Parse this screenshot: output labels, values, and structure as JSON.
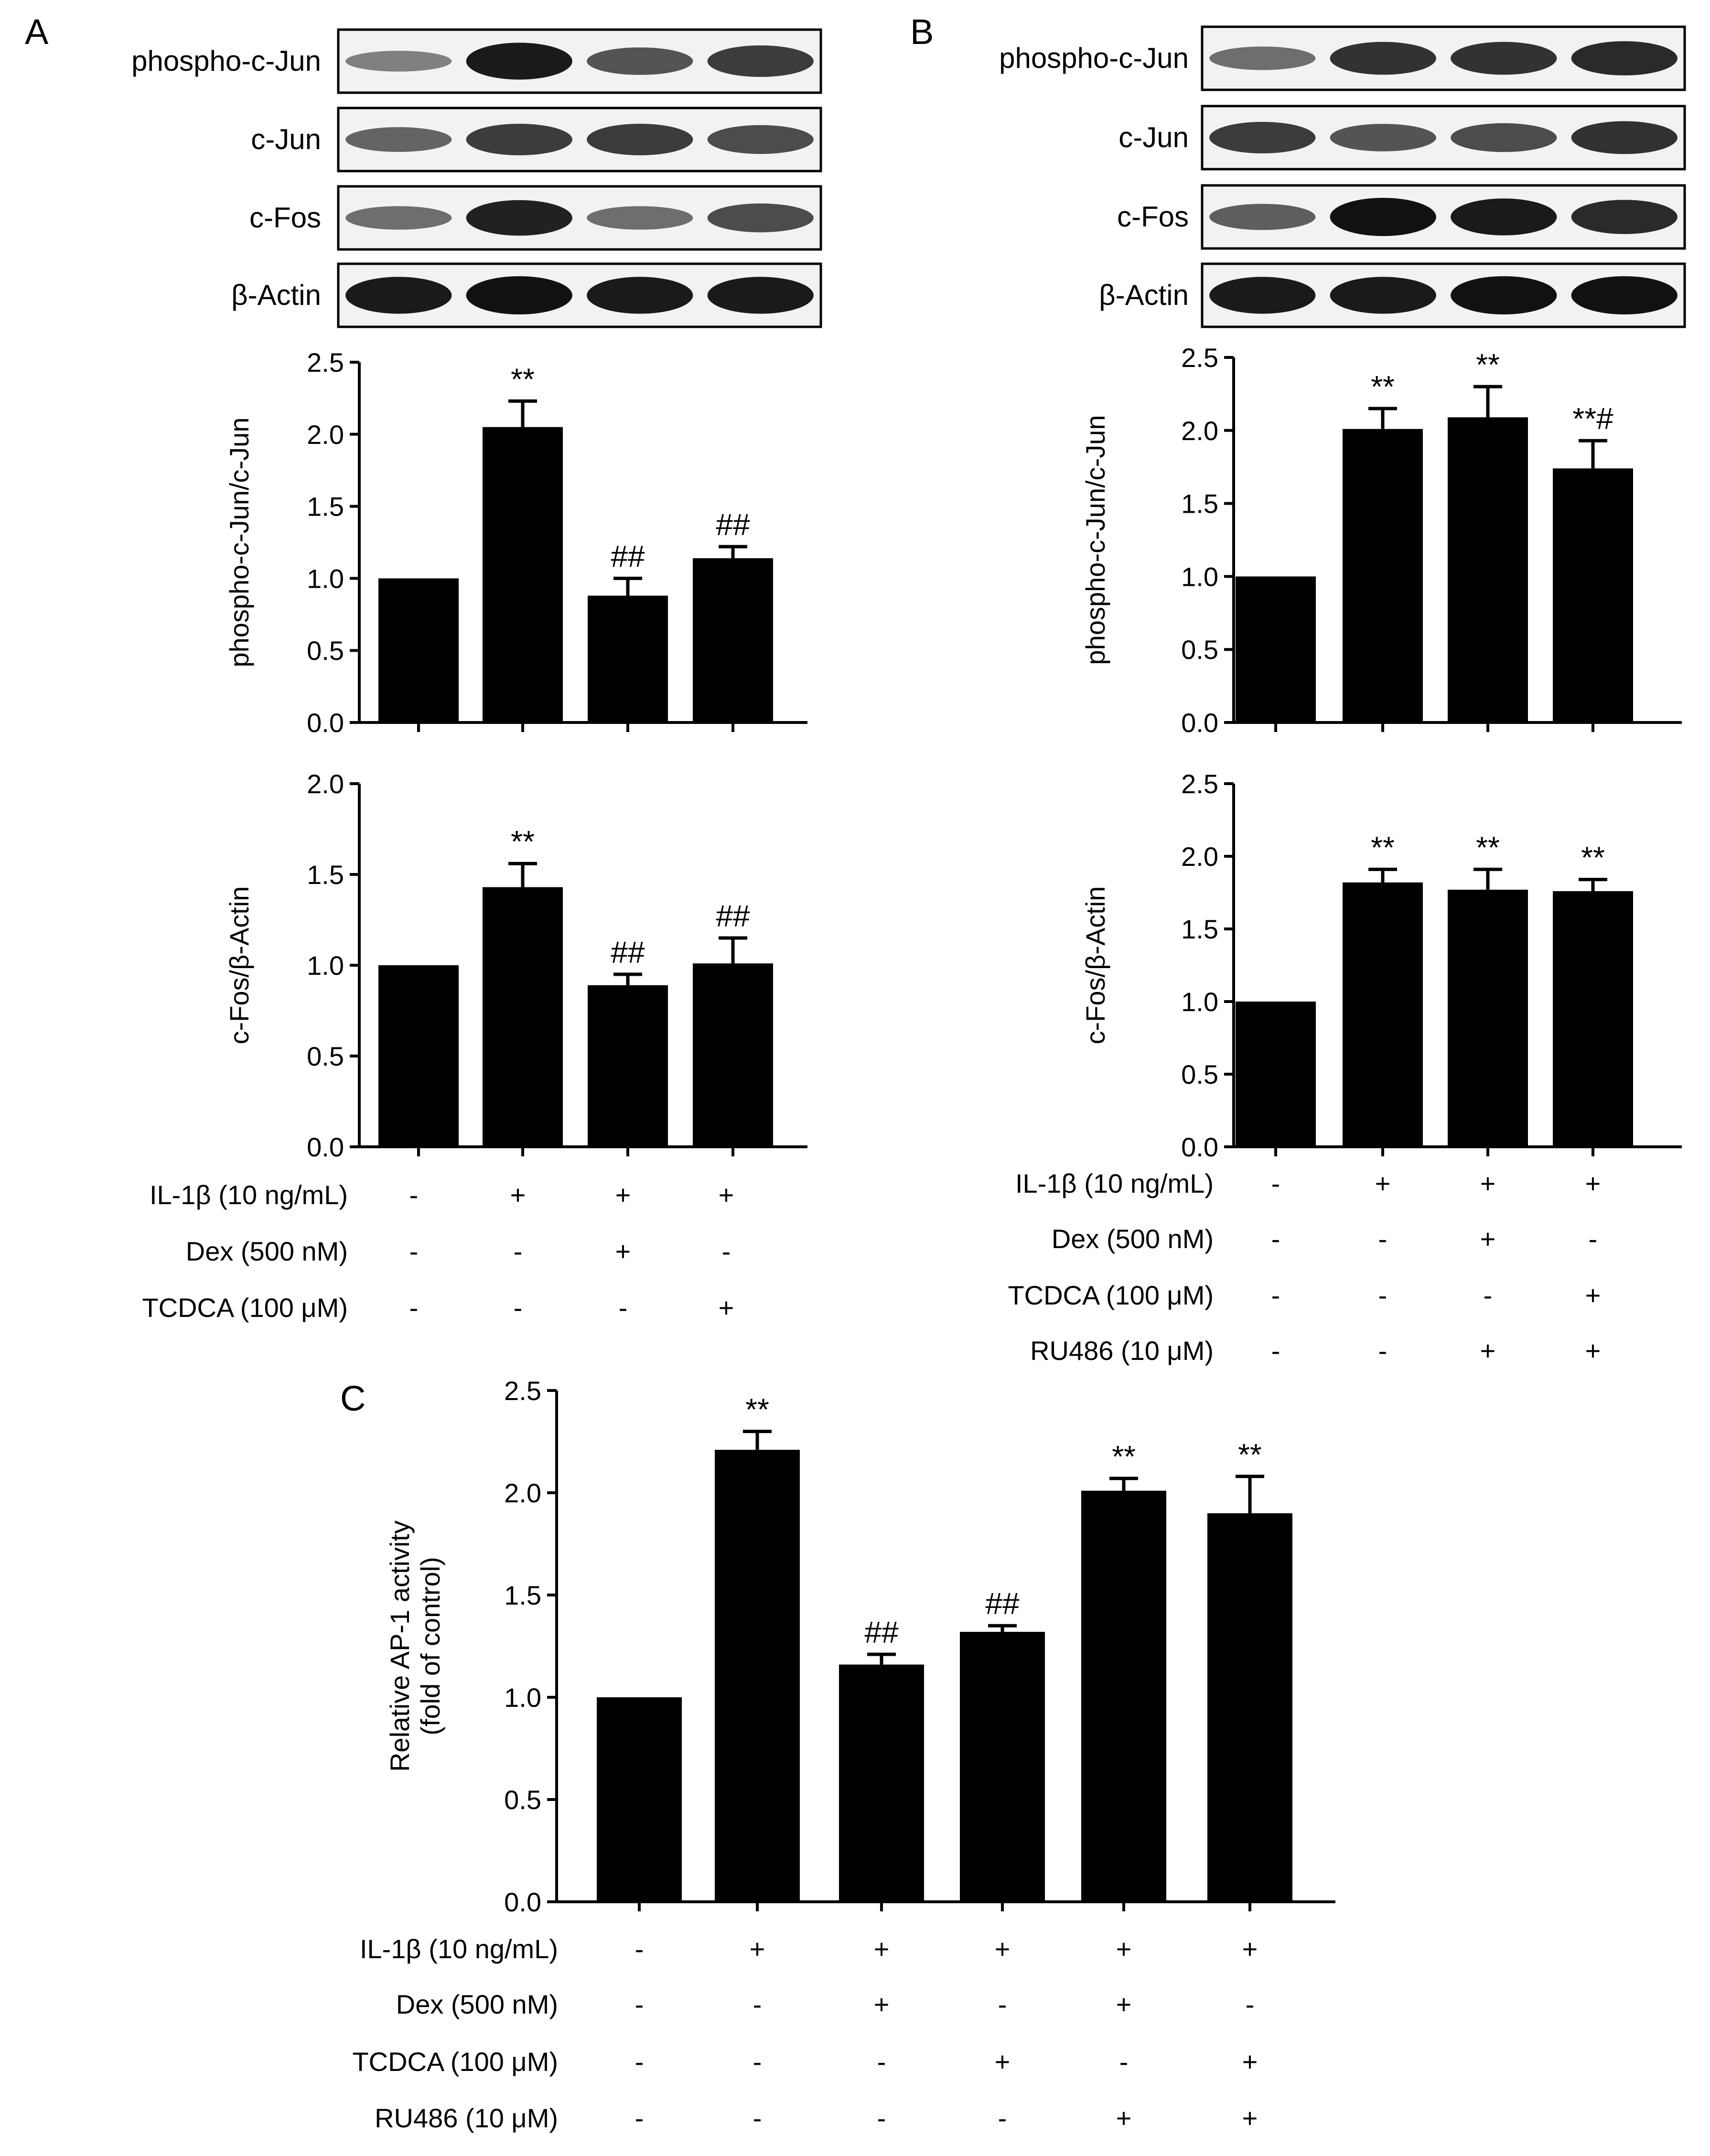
{
  "figure": {
    "bar_color": "#000000",
    "blot_background": "#f2f2f2",
    "blot_band_color": "#111111",
    "panels": [
      "A",
      "B",
      "C"
    ]
  },
  "panel_a": {
    "letter": "A",
    "blots": [
      {
        "label": "phospho-c-Jun",
        "intensity": [
          0.35,
          0.95,
          0.6,
          0.75
        ]
      },
      {
        "label": "c-Jun",
        "intensity": [
          0.5,
          0.75,
          0.75,
          0.65
        ]
      },
      {
        "label": "c-Fos",
        "intensity": [
          0.45,
          0.9,
          0.45,
          0.65
        ]
      },
      {
        "label": "β-Actin",
        "intensity": [
          0.95,
          1.0,
          0.95,
          0.95
        ]
      }
    ],
    "conditions": [
      {
        "label": "IL-1β (10 ng/mL)",
        "values": [
          "-",
          "+",
          "+",
          "+"
        ]
      },
      {
        "label": "Dex (500 nM)",
        "values": [
          "-",
          "-",
          "+",
          "-"
        ]
      },
      {
        "label": "TCDCA (100 μM)",
        "values": [
          "-",
          "-",
          "-",
          "+"
        ]
      }
    ]
  },
  "panel_b": {
    "letter": "B",
    "blots": [
      {
        "label": "phospho-c-Jun",
        "intensity": [
          0.45,
          0.8,
          0.8,
          0.85
        ]
      },
      {
        "label": "c-Jun",
        "intensity": [
          0.75,
          0.6,
          0.65,
          0.8
        ]
      },
      {
        "label": "c-Fos",
        "intensity": [
          0.55,
          1.0,
          0.95,
          0.85
        ]
      },
      {
        "label": "β-Actin",
        "intensity": [
          0.95,
          0.95,
          1.0,
          1.0
        ]
      }
    ],
    "conditions": [
      {
        "label": "IL-1β (10 ng/mL)",
        "values": [
          "-",
          "+",
          "+",
          "+"
        ]
      },
      {
        "label": "Dex (500 nM)",
        "values": [
          "-",
          "-",
          "+",
          "-"
        ]
      },
      {
        "label": "TCDCA (100 μM)",
        "values": [
          "-",
          "-",
          "-",
          "+"
        ]
      },
      {
        "label": "RU486 (10 μM)",
        "values": [
          "-",
          "-",
          "+",
          "+"
        ]
      }
    ]
  },
  "panel_c": {
    "letter": "C",
    "conditions": [
      {
        "label": "IL-1β (10 ng/mL)",
        "values": [
          "-",
          "+",
          "+",
          "+",
          "+",
          "+"
        ]
      },
      {
        "label": "Dex (500 nM)",
        "values": [
          "-",
          "-",
          "+",
          "-",
          "+",
          "-"
        ]
      },
      {
        "label": "TCDCA (100 μM)",
        "values": [
          "-",
          "-",
          "-",
          "+",
          "-",
          "+"
        ]
      },
      {
        "label": "RU486 (10 μM)",
        "values": [
          "-",
          "-",
          "-",
          "-",
          "+",
          "+"
        ]
      }
    ]
  },
  "chart_data": [
    {
      "panel": "A",
      "type": "bar",
      "title": "",
      "xlabel": "",
      "ylabel": "phospho-c-Jun/c-Jun",
      "ylim": [
        0,
        2.5
      ],
      "yticks": [
        "0.0",
        "0.5",
        "1.0",
        "1.5",
        "2.0",
        "2.5"
      ],
      "grid": false,
      "values": [
        1.0,
        2.05,
        0.88,
        1.14
      ],
      "errors": [
        0.0,
        0.18,
        0.12,
        0.08
      ],
      "annotations": [
        "",
        "**",
        "##",
        "##"
      ]
    },
    {
      "panel": "A",
      "type": "bar",
      "title": "",
      "xlabel": "",
      "ylabel": "c-Fos/β-Actin",
      "ylim": [
        0,
        2.0
      ],
      "yticks": [
        "0.0",
        "0.5",
        "1.0",
        "1.5",
        "2.0"
      ],
      "grid": false,
      "values": [
        1.0,
        1.43,
        0.89,
        1.01
      ],
      "errors": [
        0.0,
        0.13,
        0.06,
        0.14
      ],
      "annotations": [
        "",
        "**",
        "##",
        "##"
      ]
    },
    {
      "panel": "B",
      "type": "bar",
      "title": "",
      "xlabel": "",
      "ylabel": "phospho-c-Jun/c-Jun",
      "ylim": [
        0,
        2.5
      ],
      "yticks": [
        "0.0",
        "0.5",
        "1.0",
        "1.5",
        "2.0",
        "2.5"
      ],
      "grid": false,
      "values": [
        1.0,
        2.01,
        2.09,
        1.74
      ],
      "errors": [
        0.0,
        0.14,
        0.21,
        0.19
      ],
      "annotations": [
        "",
        "**",
        "**",
        "**#"
      ]
    },
    {
      "panel": "B",
      "type": "bar",
      "title": "",
      "xlabel": "",
      "ylabel": "c-Fos/β-Actin",
      "ylim": [
        0,
        2.5
      ],
      "yticks": [
        "0.0",
        "0.5",
        "1.0",
        "1.5",
        "2.0",
        "2.5"
      ],
      "grid": false,
      "values": [
        1.0,
        1.82,
        1.77,
        1.76
      ],
      "errors": [
        0.0,
        0.09,
        0.14,
        0.08
      ],
      "annotations": [
        "",
        "**",
        "**",
        "**"
      ]
    },
    {
      "panel": "C",
      "type": "bar",
      "title": "",
      "xlabel": "",
      "ylabel": "Relative AP-1 activity",
      "ylabel2": "(fold of control)",
      "ylim": [
        0,
        2.5
      ],
      "yticks": [
        "0.0",
        "0.5",
        "1.0",
        "1.5",
        "2.0",
        "2.5"
      ],
      "grid": false,
      "values": [
        1.0,
        2.21,
        1.16,
        1.32,
        2.01,
        1.9
      ],
      "errors": [
        0.0,
        0.09,
        0.05,
        0.03,
        0.06,
        0.18
      ],
      "annotations": [
        "",
        "**",
        "##",
        "##",
        "**",
        "**"
      ]
    }
  ]
}
